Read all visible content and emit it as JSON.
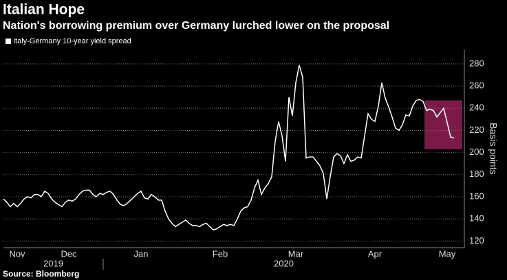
{
  "chart_data": {
    "type": "line",
    "title": "Italian Hope",
    "subtitle": "Nation's borrowing premium over Germany lurched lower on the proposal",
    "y_label": "Basis points",
    "source": "Source: Bloomberg",
    "categories": [
      null,
      null,
      null,
      null,
      "Nov",
      null,
      null,
      null,
      null,
      null,
      null,
      null,
      null,
      null,
      null,
      null,
      null,
      null,
      null,
      "Dec",
      null,
      null,
      null,
      null,
      null,
      null,
      null,
      null,
      null,
      null,
      null,
      null,
      null,
      null,
      null,
      null,
      null,
      null,
      null,
      null,
      "Jan",
      null,
      null,
      null,
      null,
      null,
      null,
      null,
      null,
      null,
      null,
      null,
      null,
      null,
      null,
      null,
      null,
      null,
      null,
      null,
      null,
      null,
      null,
      "Feb",
      null,
      null,
      null,
      null,
      null,
      null,
      null,
      null,
      null,
      null,
      null,
      null,
      null,
      null,
      null,
      null,
      null,
      null,
      null,
      null,
      null,
      "Mar",
      null,
      null,
      null,
      null,
      null,
      null,
      null,
      null,
      null,
      null,
      null,
      null,
      null,
      null,
      null,
      null,
      null,
      null,
      null,
      null,
      null,
      null,
      "Apr",
      null,
      null,
      null,
      null,
      null,
      null,
      null,
      null,
      null,
      null,
      null,
      null,
      null,
      null,
      null,
      null,
      null,
      null,
      null,
      null,
      "May",
      null,
      null
    ],
    "year_labels": [
      "2019",
      "2020"
    ],
    "series": [
      {
        "name": "Italy-Germany 10-year yield spread",
        "color": "#ffffff",
        "values": [
          158,
          155,
          151,
          154,
          151,
          154,
          158,
          160,
          159,
          162,
          162,
          160,
          165,
          163,
          158,
          155,
          153,
          151,
          155,
          157,
          156,
          158,
          162,
          165,
          166,
          166,
          162,
          160,
          163,
          162,
          164,
          165,
          162,
          157,
          153,
          152,
          154,
          157,
          160,
          163,
          165,
          159,
          158,
          162,
          160,
          157,
          157,
          147,
          140,
          136,
          133,
          135,
          137,
          139,
          136,
          134,
          134,
          133,
          135,
          136,
          133,
          130,
          131,
          133,
          135,
          134,
          135,
          134,
          140,
          147,
          150,
          151,
          157,
          168,
          175,
          162,
          168,
          172,
          178,
          210,
          228,
          215,
          192,
          250,
          233,
          263,
          279,
          268,
          195,
          196,
          196,
          192,
          188,
          181,
          158,
          178,
          196,
          199,
          197,
          190,
          198,
          192,
          193,
          196,
          195,
          215,
          235,
          230,
          228,
          242,
          263,
          249,
          241,
          232,
          222,
          220,
          225,
          234,
          233,
          242,
          247,
          248,
          246,
          238,
          239,
          238,
          232,
          236,
          240,
          227,
          214,
          213
        ]
      }
    ],
    "ylim": [
      114,
      293
    ],
    "yticks": [
      120,
      140,
      160,
      180,
      200,
      220,
      240,
      260,
      280
    ],
    "grid": true
  }
}
